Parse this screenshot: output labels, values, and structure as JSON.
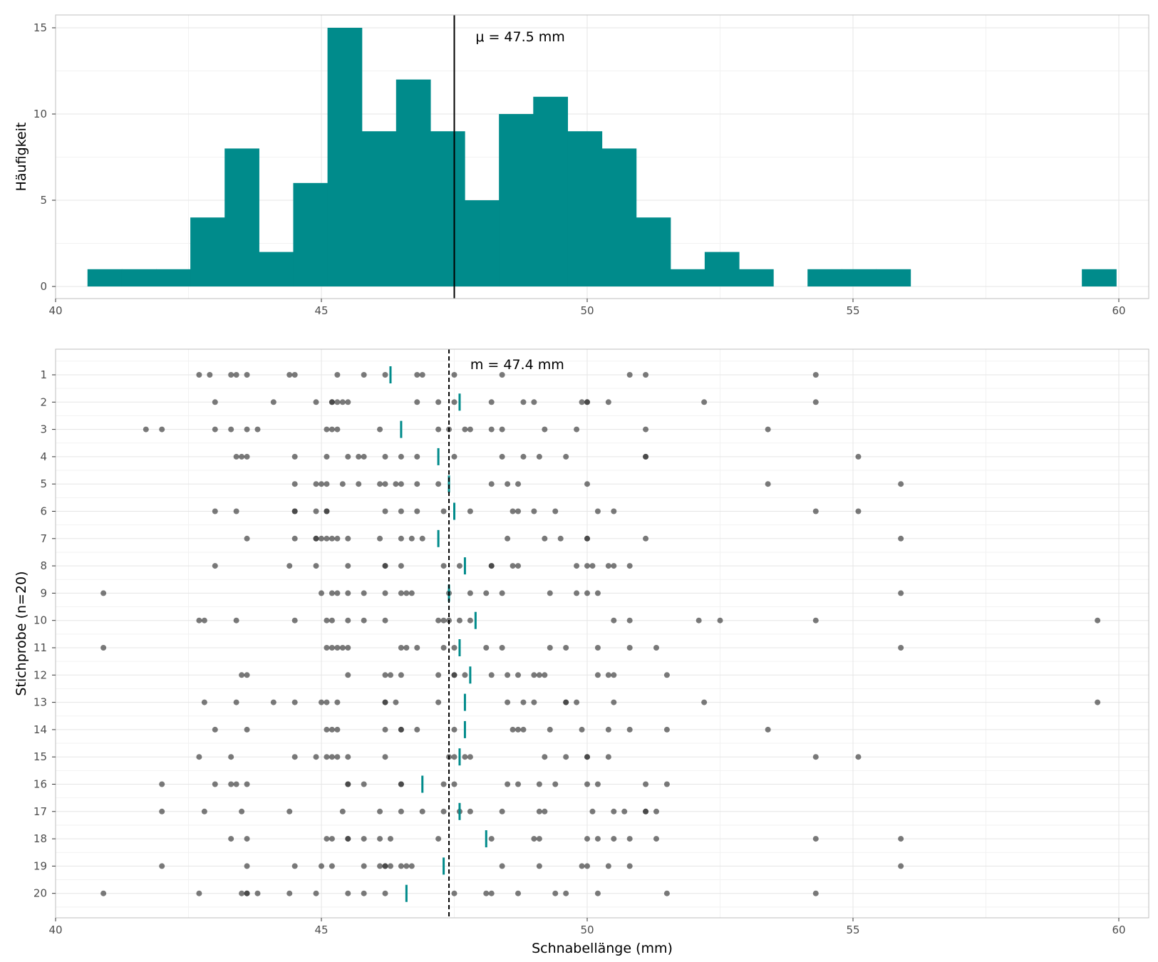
{
  "colors": {
    "bar_fill": "#008B8B",
    "mean_tick": "#008B8B",
    "point": "#333333",
    "grid_major": "#e5e5e5",
    "grid_minor": "#f2f2f2",
    "panel_border": "#bfbfbf",
    "line": "#000000"
  },
  "chart_data": [
    {
      "type": "bar",
      "subtype": "histogram",
      "ylabel": "Häufigkeit",
      "xlabel": "",
      "xlim": [
        40,
        60
      ],
      "ylim": [
        0,
        15
      ],
      "xticks": [
        "40",
        "45",
        "50",
        "55",
        "60"
      ],
      "yticks": [
        "0",
        "5",
        "10",
        "15"
      ],
      "grid": true,
      "bin_width": 0.645,
      "bins": [
        {
          "x0": 40.6,
          "x1": 41.245,
          "count": 1
        },
        {
          "x0": 41.245,
          "x1": 41.89,
          "count": 1
        },
        {
          "x0": 41.89,
          "x1": 42.535,
          "count": 1
        },
        {
          "x0": 42.535,
          "x1": 43.18,
          "count": 4
        },
        {
          "x0": 43.18,
          "x1": 43.825,
          "count": 8
        },
        {
          "x0": 43.825,
          "x1": 44.47,
          "count": 2
        },
        {
          "x0": 44.47,
          "x1": 45.115,
          "count": 6
        },
        {
          "x0": 45.115,
          "x1": 45.76,
          "count": 15
        },
        {
          "x0": 45.76,
          "x1": 46.405,
          "count": 9
        },
        {
          "x0": 46.405,
          "x1": 47.05,
          "count": 12
        },
        {
          "x0": 47.05,
          "x1": 47.695,
          "count": 9
        },
        {
          "x0": 47.695,
          "x1": 48.34,
          "count": 5
        },
        {
          "x0": 48.34,
          "x1": 48.985,
          "count": 10
        },
        {
          "x0": 48.985,
          "x1": 49.63,
          "count": 11
        },
        {
          "x0": 49.63,
          "x1": 50.275,
          "count": 9
        },
        {
          "x0": 50.275,
          "x1": 50.92,
          "count": 8
        },
        {
          "x0": 50.92,
          "x1": 51.565,
          "count": 4
        },
        {
          "x0": 51.565,
          "x1": 52.21,
          "count": 1
        },
        {
          "x0": 52.21,
          "x1": 52.855,
          "count": 2
        },
        {
          "x0": 52.855,
          "x1": 53.5,
          "count": 1
        },
        {
          "x0": 53.5,
          "x1": 54.145,
          "count": 0
        },
        {
          "x0": 54.145,
          "x1": 54.79,
          "count": 1
        },
        {
          "x0": 54.79,
          "x1": 55.435,
          "count": 1
        },
        {
          "x0": 55.435,
          "x1": 56.08,
          "count": 1
        },
        {
          "x0": 56.08,
          "x1": 56.725,
          "count": 0
        },
        {
          "x0": 56.725,
          "x1": 57.37,
          "count": 0
        },
        {
          "x0": 57.37,
          "x1": 58.015,
          "count": 0
        },
        {
          "x0": 58.015,
          "x1": 58.66,
          "count": 0
        },
        {
          "x0": 58.66,
          "x1": 59.305,
          "count": 0
        },
        {
          "x0": 59.305,
          "x1": 59.95,
          "count": 1
        }
      ],
      "reference_line": {
        "x": 47.5,
        "style": "solid"
      },
      "annotations": [
        {
          "text": "μ = 47.5 mm",
          "x": 47.9,
          "y": 14.5
        }
      ]
    },
    {
      "type": "scatter",
      "subtype": "strip",
      "xlabel": "Schnabellänge (mm)",
      "ylabel": "Stichprobe (n=20)",
      "xlim": [
        40,
        60
      ],
      "xticks": [
        "40",
        "45",
        "50",
        "55",
        "60"
      ],
      "grid": true,
      "reference_line": {
        "x": 47.4,
        "style": "dashed"
      },
      "annotations": [
        {
          "text": "m = 47.4 mm",
          "x": 47.8,
          "sample": 1
        }
      ],
      "samples": [
        {
          "label": "1",
          "mean": 46.3,
          "values": [
            42.7,
            42.9,
            43.3,
            43.4,
            43.6,
            44.4,
            44.5,
            45.3,
            45.8,
            46.2,
            46.8,
            46.9,
            47.5,
            48.4,
            50.8,
            51.1,
            54.3
          ]
        },
        {
          "label": "2",
          "mean": 47.6,
          "values": [
            43.0,
            44.1,
            44.9,
            45.2,
            45.2,
            45.3,
            45.4,
            45.5,
            46.8,
            47.2,
            47.5,
            48.2,
            48.8,
            49.0,
            49.9,
            50.0,
            50.0,
            50.4,
            52.2,
            54.3
          ]
        },
        {
          "label": "3",
          "mean": 46.5,
          "values": [
            41.7,
            42.0,
            43.0,
            43.3,
            43.6,
            43.8,
            45.1,
            45.2,
            45.3,
            46.1,
            47.2,
            47.4,
            47.7,
            47.8,
            48.2,
            48.4,
            49.2,
            49.8,
            51.1,
            53.4
          ]
        },
        {
          "label": "4",
          "mean": 47.2,
          "values": [
            43.4,
            43.5,
            43.6,
            44.5,
            45.1,
            45.5,
            45.7,
            45.8,
            46.2,
            46.5,
            46.8,
            47.5,
            48.4,
            48.8,
            49.1,
            49.6,
            51.1,
            51.1,
            55.1
          ]
        },
        {
          "label": "5",
          "mean": 47.4,
          "values": [
            44.5,
            44.9,
            45.0,
            45.1,
            45.4,
            45.7,
            46.1,
            46.2,
            46.4,
            46.5,
            46.8,
            47.2,
            48.2,
            48.5,
            48.7,
            50.0,
            53.4,
            55.9
          ]
        },
        {
          "label": "6",
          "mean": 47.5,
          "values": [
            43.0,
            43.4,
            44.5,
            44.5,
            44.9,
            45.1,
            45.1,
            46.2,
            46.5,
            46.8,
            47.3,
            47.8,
            48.6,
            48.7,
            49.0,
            49.4,
            50.2,
            50.5,
            54.3,
            55.1
          ]
        },
        {
          "label": "7",
          "mean": 47.2,
          "values": [
            43.6,
            44.5,
            44.9,
            44.9,
            45.0,
            45.1,
            45.2,
            45.3,
            45.5,
            46.1,
            46.5,
            46.7,
            46.9,
            48.5,
            49.2,
            49.5,
            50.0,
            50.0,
            51.1,
            55.9
          ]
        },
        {
          "label": "8",
          "mean": 47.7,
          "values": [
            43.0,
            44.4,
            44.9,
            45.5,
            46.2,
            46.2,
            46.5,
            47.3,
            47.6,
            48.2,
            48.2,
            48.6,
            48.7,
            49.8,
            50.0,
            50.1,
            50.4,
            50.5,
            50.8
          ]
        },
        {
          "label": "9",
          "mean": 47.4,
          "values": [
            40.9,
            45.0,
            45.2,
            45.3,
            45.5,
            45.8,
            46.2,
            46.5,
            46.6,
            46.7,
            47.4,
            47.8,
            48.1,
            48.4,
            49.3,
            49.8,
            50.0,
            50.2,
            55.9
          ]
        },
        {
          "label": "10",
          "mean": 47.9,
          "values": [
            42.7,
            42.8,
            43.4,
            44.5,
            45.1,
            45.2,
            45.5,
            45.8,
            46.2,
            47.2,
            47.3,
            47.4,
            47.6,
            47.8,
            50.5,
            50.8,
            52.1,
            52.5,
            54.3,
            59.6
          ]
        },
        {
          "label": "11",
          "mean": 47.6,
          "values": [
            40.9,
            45.1,
            45.2,
            45.3,
            45.4,
            45.5,
            46.5,
            46.6,
            46.8,
            47.3,
            47.5,
            48.1,
            48.4,
            49.3,
            49.6,
            50.2,
            50.8,
            51.3,
            55.9
          ]
        },
        {
          "label": "12",
          "mean": 47.8,
          "values": [
            43.5,
            43.6,
            45.5,
            46.2,
            46.3,
            46.5,
            47.2,
            47.5,
            47.5,
            47.7,
            48.2,
            48.5,
            48.7,
            49.0,
            49.1,
            49.2,
            50.2,
            50.4,
            50.5,
            51.5
          ]
        },
        {
          "label": "13",
          "mean": 47.7,
          "values": [
            42.8,
            43.4,
            44.1,
            44.5,
            45.0,
            45.1,
            45.3,
            46.2,
            46.2,
            46.4,
            47.2,
            48.5,
            48.8,
            49.0,
            49.6,
            49.6,
            49.8,
            50.5,
            52.2,
            59.6
          ]
        },
        {
          "label": "14",
          "mean": 47.7,
          "values": [
            43.0,
            43.6,
            45.1,
            45.2,
            45.3,
            46.2,
            46.5,
            46.5,
            46.8,
            47.5,
            48.6,
            48.7,
            48.8,
            49.3,
            49.9,
            50.4,
            50.8,
            51.5,
            53.4
          ]
        },
        {
          "label": "15",
          "mean": 47.6,
          "values": [
            42.7,
            43.3,
            44.5,
            44.9,
            45.1,
            45.2,
            45.3,
            45.5,
            46.2,
            47.4,
            47.5,
            47.7,
            47.8,
            49.2,
            49.6,
            50.0,
            50.0,
            50.4,
            54.3,
            55.1
          ]
        },
        {
          "label": "16",
          "mean": 46.9,
          "values": [
            42.0,
            43.0,
            43.3,
            43.4,
            43.6,
            45.5,
            45.5,
            45.8,
            46.5,
            46.5,
            47.3,
            47.5,
            48.5,
            48.7,
            49.1,
            49.4,
            50.0,
            50.2,
            51.1,
            51.5
          ]
        },
        {
          "label": "17",
          "mean": 47.6,
          "values": [
            42.0,
            42.8,
            43.5,
            44.4,
            45.4,
            46.1,
            46.5,
            46.9,
            47.3,
            47.6,
            47.8,
            48.4,
            49.1,
            49.2,
            50.1,
            50.5,
            50.7,
            51.1,
            51.1,
            51.3
          ]
        },
        {
          "label": "18",
          "mean": 48.1,
          "values": [
            43.3,
            43.6,
            45.1,
            45.2,
            45.5,
            45.5,
            45.8,
            46.1,
            46.3,
            47.2,
            48.2,
            49.0,
            49.1,
            50.0,
            50.2,
            50.5,
            50.8,
            51.3,
            54.3,
            55.9
          ]
        },
        {
          "label": "19",
          "mean": 47.3,
          "values": [
            42.0,
            43.6,
            44.5,
            45.0,
            45.2,
            45.8,
            46.1,
            46.2,
            46.2,
            46.3,
            46.5,
            46.6,
            46.7,
            48.4,
            49.1,
            49.9,
            50.0,
            50.4,
            50.8,
            55.9
          ]
        },
        {
          "label": "20",
          "mean": 46.6,
          "values": [
            40.9,
            42.7,
            43.5,
            43.6,
            43.6,
            43.8,
            44.4,
            44.9,
            45.5,
            45.8,
            46.2,
            47.5,
            48.1,
            48.2,
            48.7,
            49.4,
            49.6,
            50.2,
            51.5,
            54.3
          ]
        }
      ]
    }
  ]
}
